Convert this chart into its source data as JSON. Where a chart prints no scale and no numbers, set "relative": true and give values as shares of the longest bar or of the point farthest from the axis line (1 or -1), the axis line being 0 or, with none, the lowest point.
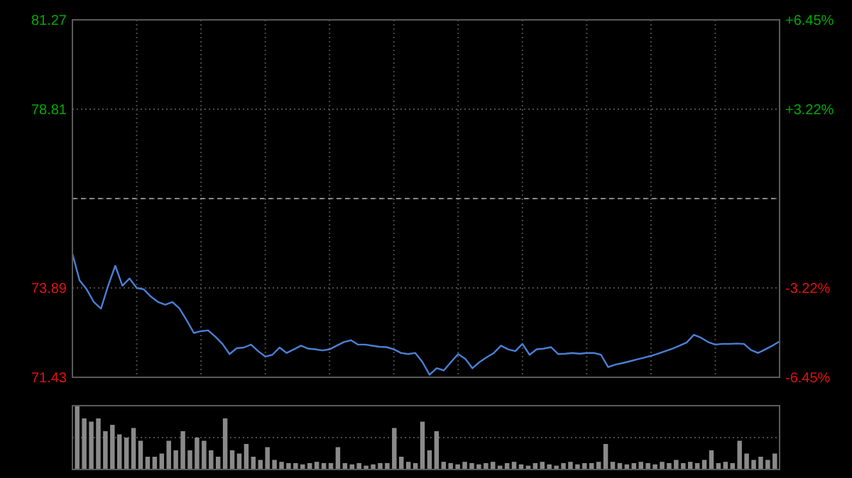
{
  "chart_data": [
    {
      "type": "line",
      "categories": [
        null,
        null,
        null,
        null,
        null,
        null,
        null,
        null,
        null,
        null,
        null,
        null,
        null,
        null,
        null,
        null,
        null,
        null,
        null,
        null,
        null,
        null,
        null,
        null,
        null,
        null,
        null,
        null,
        null,
        null,
        null,
        null,
        null,
        null,
        null,
        null,
        null,
        null,
        null,
        null,
        null,
        null,
        null,
        null,
        null,
        null,
        null,
        null,
        null,
        null,
        null,
        null,
        null,
        null,
        null,
        null,
        null,
        null,
        null,
        null,
        null,
        null,
        null,
        null,
        null,
        null,
        null,
        null,
        null,
        null,
        null,
        null,
        null,
        null,
        null,
        null,
        null,
        null,
        null,
        null,
        null,
        null,
        null,
        null,
        null,
        null,
        null,
        null,
        null,
        null,
        null,
        null,
        null,
        null,
        null,
        null,
        null,
        null,
        null,
        null
      ],
      "series": [
        {
          "color": "#4a7fd4",
          "values": [
            74.83,
            74.1,
            73.85,
            73.5,
            73.32,
            73.95,
            74.5,
            73.95,
            74.15,
            73.89,
            73.85,
            73.65,
            73.5,
            73.43,
            73.5,
            73.32,
            73.0,
            72.65,
            72.7,
            72.72,
            72.55,
            72.35,
            72.07,
            72.23,
            72.25,
            72.33,
            72.15,
            72.0,
            72.05,
            72.25,
            72.1,
            72.2,
            72.3,
            72.22,
            72.2,
            72.17,
            72.2,
            72.3,
            72.4,
            72.45,
            72.33,
            72.33,
            72.3,
            72.27,
            72.26,
            72.2,
            72.1,
            72.07,
            72.1,
            71.85,
            71.5,
            71.68,
            71.62,
            71.85,
            72.07,
            71.94,
            71.68,
            71.85,
            71.98,
            72.1,
            72.3,
            72.2,
            72.15,
            72.35,
            72.05,
            72.2,
            72.22,
            72.26,
            72.07,
            72.08,
            72.1,
            72.08,
            72.1,
            72.1,
            72.05,
            71.71,
            71.78,
            71.82,
            71.87,
            71.92,
            71.97,
            72.02,
            72.08,
            72.15,
            72.22,
            72.3,
            72.39,
            72.6,
            72.52,
            72.4,
            72.33,
            72.35,
            72.35,
            72.36,
            72.35,
            72.18,
            72.1,
            72.2,
            72.3,
            72.42
          ]
        }
      ],
      "ylim": [
        71.43,
        81.27
      ],
      "yticks": [
        71.43,
        73.89,
        {
          "value": 76.35,
          "label": null
        },
        78.81,
        81.27
      ],
      "y2lim": [
        -6.45,
        6.45
      ],
      "y2ticks": [
        {
          "value": -6.45,
          "label": "-6.45%"
        },
        {
          "value": -3.22,
          "label": "-3.22%"
        },
        {
          "value": 3.22,
          "label": "+3.22%"
        },
        {
          "value": 6.45,
          "label": "+6.45%"
        }
      ],
      "ref_lines": [
        {
          "axis": "y",
          "value": 76.35,
          "line_style": "dashed"
        }
      ],
      "grid": true,
      "tick_labels": "y"
    },
    {
      "type": "bar",
      "relative": true,
      "color": "#8a8a8a",
      "ref_lines": [
        {
          "axis": "y",
          "value": 0.5,
          "line_style": "dotted",
          "color": "#4a4a4a"
        }
      ],
      "categories": [
        null,
        null,
        null,
        null,
        null,
        null,
        null,
        null,
        null,
        null,
        null,
        null,
        null,
        null,
        null,
        null,
        null,
        null,
        null,
        null,
        null,
        null,
        null,
        null,
        null,
        null,
        null,
        null,
        null,
        null,
        null,
        null,
        null,
        null,
        null,
        null,
        null,
        null,
        null,
        null,
        null,
        null,
        null,
        null,
        null,
        null,
        null,
        null,
        null,
        null,
        null,
        null,
        null,
        null,
        null,
        null,
        null,
        null,
        null,
        null,
        null,
        null,
        null,
        null,
        null,
        null,
        null,
        null,
        null,
        null,
        null,
        null,
        null,
        null,
        null,
        null,
        null,
        null,
        null,
        null,
        null,
        null,
        null,
        null,
        null,
        null,
        null,
        null,
        null,
        null,
        null,
        null,
        null,
        null,
        null,
        null,
        null,
        null,
        null,
        null
      ],
      "values": [
        1.0,
        0.8,
        0.75,
        0.8,
        0.6,
        0.7,
        0.55,
        0.5,
        0.65,
        0.45,
        0.2,
        0.2,
        0.25,
        0.45,
        0.3,
        0.6,
        0.3,
        0.5,
        0.45,
        0.3,
        0.2,
        0.8,
        0.3,
        0.25,
        0.4,
        0.2,
        0.15,
        0.35,
        0.15,
        0.12,
        0.1,
        0.1,
        0.08,
        0.1,
        0.12,
        0.1,
        0.1,
        0.35,
        0.1,
        0.08,
        0.1,
        0.06,
        0.08,
        0.1,
        0.1,
        0.65,
        0.2,
        0.12,
        0.1,
        0.75,
        0.3,
        0.6,
        0.12,
        0.1,
        0.08,
        0.12,
        0.1,
        0.08,
        0.1,
        0.12,
        0.06,
        0.1,
        0.12,
        0.08,
        0.06,
        0.1,
        0.12,
        0.08,
        0.06,
        0.1,
        0.12,
        0.08,
        0.1,
        0.1,
        0.12,
        0.4,
        0.12,
        0.1,
        0.08,
        0.1,
        0.12,
        0.1,
        0.08,
        0.12,
        0.1,
        0.15,
        0.1,
        0.12,
        0.1,
        0.15,
        0.3,
        0.1,
        0.12,
        0.1,
        0.45,
        0.25,
        0.15,
        0.2,
        0.15,
        0.25
      ]
    }
  ]
}
